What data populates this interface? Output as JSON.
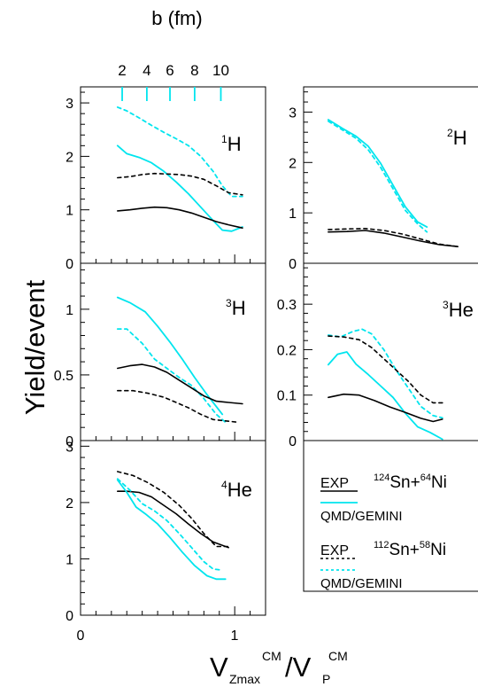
{
  "figure": {
    "top_axis_title": "b (fm)",
    "top_tick_labels": [
      "2",
      "4",
      "6",
      "8",
      "10"
    ],
    "y_title": "Yield/event",
    "x_title": "V",
    "x_title_sub1": "Zmax",
    "x_title_sup1": "CM",
    "x_title_slash": "/V",
    "x_title_sub2": "P",
    "x_title_sup2": "CM",
    "x_tick_labels": [
      "0",
      "1"
    ],
    "colors": {
      "exp": "#000000",
      "model": "#00e5ee"
    },
    "legend": {
      "row1_exp": "EXP",
      "row1_model": "QMD/GEMINI",
      "row1_system": {
        "a_mass": "124",
        "a_el": "Sn+",
        "b_mass": "64",
        "b_el": "Ni"
      },
      "row2_exp": "EXP",
      "row2_model": "QMD/GEMINI",
      "row2_system": {
        "a_mass": "112",
        "a_el": "Sn+",
        "b_mass": "58",
        "b_el": "Ni"
      }
    }
  },
  "chart_data": [
    {
      "type": "line",
      "particle": {
        "mass": "1",
        "symbol": "H"
      },
      "xlim": [
        0,
        1.2
      ],
      "ylim": [
        0,
        3.3
      ],
      "y_ticks": [
        0,
        1,
        2,
        3
      ],
      "y_tick_labels": [
        "0",
        "1",
        "2",
        "3"
      ],
      "top_axis": {
        "ticks_x": [
          0.27,
          0.43,
          0.58,
          0.74,
          0.91
        ]
      },
      "series": [
        {
          "line": "solid",
          "color": "#00e5ee",
          "x": [
            0.24,
            0.3,
            0.38,
            0.46,
            0.54,
            0.62,
            0.7,
            0.78,
            0.86,
            0.92,
            0.98,
            1.05
          ],
          "y": [
            2.2,
            2.05,
            1.98,
            1.88,
            1.72,
            1.52,
            1.3,
            1.05,
            0.8,
            0.62,
            0.6,
            0.68
          ]
        },
        {
          "line": "dashed",
          "color": "#00e5ee",
          "x": [
            0.24,
            0.3,
            0.38,
            0.46,
            0.54,
            0.62,
            0.7,
            0.78,
            0.86,
            0.92,
            0.98,
            1.05
          ],
          "y": [
            2.92,
            2.85,
            2.72,
            2.58,
            2.45,
            2.33,
            2.2,
            2.0,
            1.72,
            1.45,
            1.25,
            1.25
          ]
        },
        {
          "line": "dashed",
          "color": "#000000",
          "x": [
            0.24,
            0.32,
            0.4,
            0.48,
            0.56,
            0.64,
            0.72,
            0.8,
            0.88,
            0.96,
            1.05
          ],
          "y": [
            1.6,
            1.62,
            1.66,
            1.68,
            1.67,
            1.66,
            1.63,
            1.57,
            1.45,
            1.32,
            1.28
          ]
        },
        {
          "line": "solid",
          "color": "#000000",
          "x": [
            0.24,
            0.32,
            0.4,
            0.48,
            0.56,
            0.64,
            0.72,
            0.8,
            0.88,
            0.96,
            1.05
          ],
          "y": [
            0.98,
            1.0,
            1.03,
            1.05,
            1.04,
            1.0,
            0.94,
            0.86,
            0.78,
            0.72,
            0.66
          ]
        }
      ]
    },
    {
      "type": "line",
      "particle": {
        "mass": "2",
        "symbol": "H"
      },
      "xlim": [
        0,
        1.2
      ],
      "ylim": [
        0,
        3.5
      ],
      "y_ticks": [
        0,
        1,
        2,
        3
      ],
      "y_tick_labels": [
        "0",
        "1",
        "2",
        "3"
      ],
      "series": [
        {
          "line": "solid",
          "color": "#00e5ee",
          "x": [
            0.16,
            0.25,
            0.34,
            0.42,
            0.5,
            0.58,
            0.66,
            0.74,
            0.8
          ],
          "y": [
            2.85,
            2.68,
            2.52,
            2.32,
            1.98,
            1.55,
            1.12,
            0.82,
            0.72
          ]
        },
        {
          "line": "dashed",
          "color": "#00e5ee",
          "x": [
            0.16,
            0.25,
            0.34,
            0.42,
            0.5,
            0.58,
            0.66,
            0.74,
            0.8
          ],
          "y": [
            2.82,
            2.65,
            2.48,
            2.25,
            1.9,
            1.48,
            1.05,
            0.78,
            0.62
          ]
        },
        {
          "line": "dashed",
          "color": "#000000",
          "x": [
            0.16,
            0.28,
            0.4,
            0.52,
            0.64,
            0.76,
            0.88,
            1.0
          ],
          "y": [
            0.67,
            0.68,
            0.69,
            0.65,
            0.58,
            0.48,
            0.38,
            0.33
          ]
        },
        {
          "line": "solid",
          "color": "#000000",
          "x": [
            0.16,
            0.28,
            0.4,
            0.52,
            0.64,
            0.76,
            0.88,
            1.0
          ],
          "y": [
            0.62,
            0.63,
            0.65,
            0.6,
            0.52,
            0.44,
            0.37,
            0.33
          ]
        }
      ]
    },
    {
      "type": "line",
      "particle": {
        "mass": "3",
        "symbol": "H"
      },
      "xlim": [
        0,
        1.2
      ],
      "ylim": [
        0,
        1.35
      ],
      "y_ticks": [
        0,
        0.5,
        1
      ],
      "y_tick_labels": [
        "0",
        "0.5",
        "1"
      ],
      "series": [
        {
          "line": "solid",
          "color": "#00e5ee",
          "x": [
            0.24,
            0.32,
            0.42,
            0.5,
            0.58,
            0.66,
            0.74,
            0.82,
            0.92
          ],
          "y": [
            1.09,
            1.05,
            0.98,
            0.87,
            0.75,
            0.62,
            0.48,
            0.35,
            0.2
          ]
        },
        {
          "line": "dashed",
          "color": "#00e5ee",
          "x": [
            0.24,
            0.3,
            0.4,
            0.48,
            0.56,
            0.64,
            0.72,
            0.8,
            0.88,
            0.94
          ],
          "y": [
            0.85,
            0.85,
            0.74,
            0.62,
            0.55,
            0.48,
            0.42,
            0.32,
            0.2,
            0.14
          ]
        },
        {
          "line": "solid",
          "color": "#000000",
          "x": [
            0.24,
            0.32,
            0.4,
            0.48,
            0.56,
            0.64,
            0.72,
            0.8,
            0.88,
            0.96,
            1.05
          ],
          "y": [
            0.55,
            0.57,
            0.58,
            0.56,
            0.52,
            0.46,
            0.4,
            0.34,
            0.3,
            0.29,
            0.28
          ]
        },
        {
          "line": "dashed",
          "color": "#000000",
          "x": [
            0.24,
            0.34,
            0.44,
            0.54,
            0.62,
            0.7,
            0.78,
            0.86,
            0.94,
            1.02
          ],
          "y": [
            0.38,
            0.38,
            0.36,
            0.33,
            0.29,
            0.25,
            0.2,
            0.16,
            0.15,
            0.14
          ]
        }
      ]
    },
    {
      "type": "line",
      "particle": {
        "mass": "3",
        "symbol": "He"
      },
      "xlim": [
        0,
        1.2
      ],
      "ylim": [
        0,
        0.39
      ],
      "y_ticks": [
        0,
        0.1,
        0.2,
        0.3
      ],
      "y_tick_labels": [
        "0",
        "0.1",
        "0.2",
        "0.3"
      ],
      "series": [
        {
          "line": "solid",
          "color": "#00e5ee",
          "x": [
            0.16,
            0.22,
            0.28,
            0.34,
            0.42,
            0.5,
            0.58,
            0.66,
            0.74,
            0.82,
            0.9
          ],
          "y": [
            0.167,
            0.19,
            0.195,
            0.168,
            0.145,
            0.12,
            0.095,
            0.06,
            0.03,
            0.018,
            0.003
          ]
        },
        {
          "line": "dashed",
          "color": "#00e5ee",
          "x": [
            0.16,
            0.24,
            0.32,
            0.38,
            0.44,
            0.52,
            0.6,
            0.68,
            0.76,
            0.84,
            0.9
          ],
          "y": [
            0.232,
            0.228,
            0.24,
            0.245,
            0.235,
            0.2,
            0.155,
            0.115,
            0.075,
            0.055,
            0.05
          ]
        },
        {
          "line": "dashed",
          "color": "#000000",
          "x": [
            0.16,
            0.26,
            0.36,
            0.44,
            0.52,
            0.6,
            0.68,
            0.76,
            0.84,
            0.9
          ],
          "y": [
            0.23,
            0.228,
            0.222,
            0.205,
            0.18,
            0.155,
            0.13,
            0.1,
            0.083,
            0.083
          ]
        },
        {
          "line": "solid",
          "color": "#000000",
          "x": [
            0.16,
            0.26,
            0.36,
            0.46,
            0.56,
            0.66,
            0.76,
            0.84,
            0.9
          ],
          "y": [
            0.095,
            0.102,
            0.1,
            0.088,
            0.074,
            0.062,
            0.049,
            0.042,
            0.047
          ]
        }
      ]
    },
    {
      "type": "line",
      "particle": {
        "mass": "4",
        "symbol": "He"
      },
      "xlim": [
        0,
        1.2
      ],
      "ylim": [
        0,
        3.1
      ],
      "y_ticks": [
        0,
        1,
        2,
        3
      ],
      "y_tick_labels": [
        "0",
        "1",
        "2",
        "3"
      ],
      "series": [
        {
          "line": "dashed",
          "color": "#000000",
          "x": [
            0.24,
            0.34,
            0.44,
            0.54,
            0.64,
            0.72,
            0.8,
            0.88,
            0.96
          ],
          "y": [
            2.55,
            2.48,
            2.35,
            2.18,
            1.95,
            1.72,
            1.45,
            1.22,
            1.22
          ]
        },
        {
          "line": "solid",
          "color": "#000000",
          "x": [
            0.24,
            0.3,
            0.38,
            0.46,
            0.54,
            0.62,
            0.7,
            0.78,
            0.86,
            0.96
          ],
          "y": [
            2.2,
            2.2,
            2.18,
            2.1,
            1.95,
            1.8,
            1.62,
            1.45,
            1.3,
            1.2
          ]
        },
        {
          "line": "dashed",
          "color": "#00e5ee",
          "x": [
            0.24,
            0.32,
            0.4,
            0.48,
            0.56,
            0.64,
            0.72,
            0.8,
            0.86,
            0.92
          ],
          "y": [
            2.42,
            2.22,
            1.98,
            1.85,
            1.68,
            1.45,
            1.2,
            0.95,
            0.82,
            0.8
          ]
        },
        {
          "line": "solid",
          "color": "#00e5ee",
          "x": [
            0.24,
            0.3,
            0.36,
            0.42,
            0.5,
            0.58,
            0.66,
            0.74,
            0.82,
            0.88,
            0.94
          ],
          "y": [
            2.4,
            2.18,
            1.92,
            1.8,
            1.62,
            1.38,
            1.12,
            0.88,
            0.7,
            0.64,
            0.64
          ]
        }
      ]
    }
  ]
}
